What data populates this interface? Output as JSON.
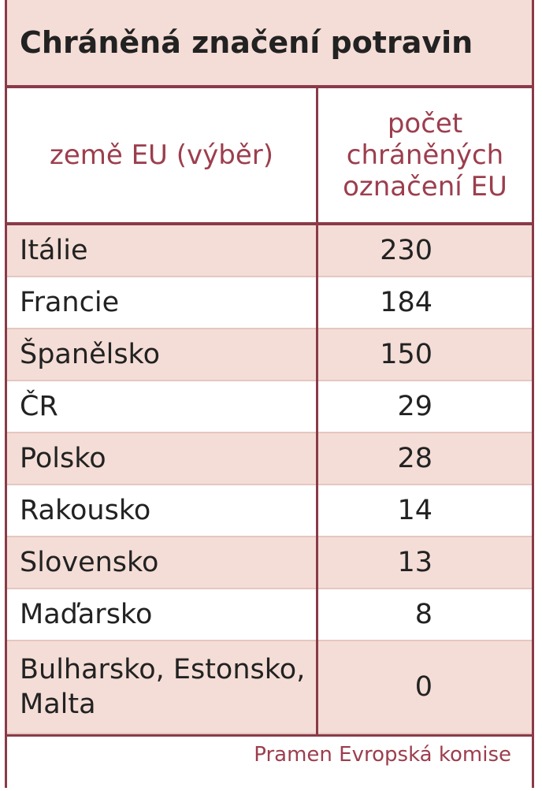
{
  "header": {
    "title": "Chráněná značení potravin"
  },
  "table": {
    "columns": [
      "země EU (výběr)",
      "počet chráněných označení EU"
    ],
    "rows": [
      [
        "Itálie",
        230
      ],
      [
        "Francie",
        184
      ],
      [
        "Španělsko",
        150
      ],
      [
        "ČR",
        29
      ],
      [
        "Polsko",
        28
      ],
      [
        "Rakousko",
        14
      ],
      [
        "Slovensko",
        13
      ],
      [
        "Maďarsko",
        8
      ],
      [
        "Bulharsko, Estonsko, Malta",
        0
      ]
    ]
  },
  "footer": {
    "source": "Pramen Evropská komise"
  }
}
